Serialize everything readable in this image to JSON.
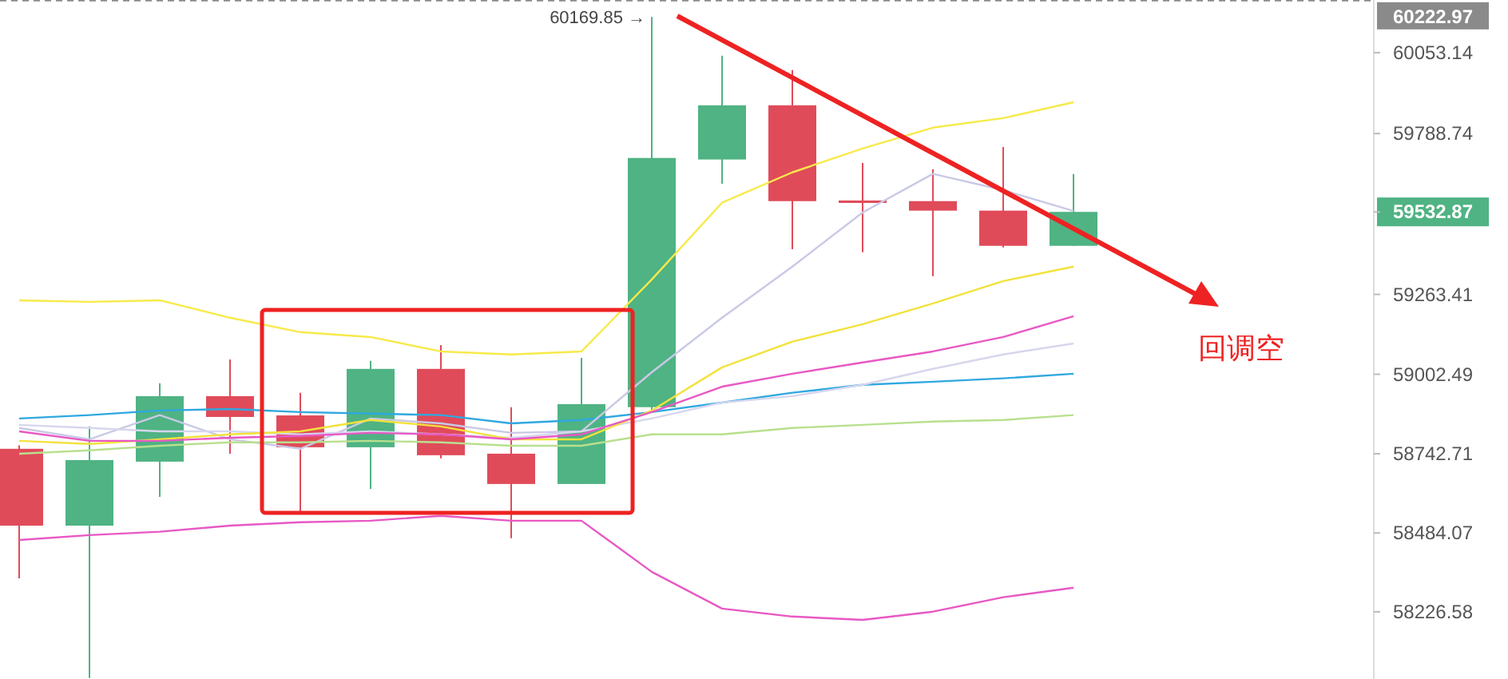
{
  "chart_data": {
    "type": "candlestick",
    "categories": [
      null,
      null,
      null,
      null,
      null,
      null,
      null,
      null,
      null,
      null,
      null,
      null,
      null,
      null,
      null,
      null
    ],
    "ohlc": [
      [
        58759,
        58770,
        58336,
        58508
      ],
      [
        58508,
        58832,
        58010,
        58722
      ],
      [
        58717,
        58973,
        58602,
        58931
      ],
      [
        58931,
        59051,
        58743,
        58863
      ],
      [
        58868,
        58942,
        58555,
        58764
      ],
      [
        58764,
        59046,
        58628,
        59020
      ],
      [
        59020,
        59098,
        58728,
        58738
      ],
      [
        58743,
        58895,
        58467,
        58644
      ],
      [
        58644,
        59056,
        58644,
        58905
      ],
      [
        58895,
        60169.85,
        58879,
        59709
      ],
      [
        59704,
        60043,
        59625,
        59881
      ],
      [
        59881,
        59996,
        59411,
        59568
      ],
      [
        59570,
        59693,
        59401,
        59563
      ],
      [
        59568,
        59672,
        59323,
        59537
      ],
      [
        59537,
        59745,
        59417,
        59422
      ],
      [
        59422,
        59657,
        59422,
        59532.87
      ]
    ],
    "colors": [
      "#e04b5a",
      "#4fb383",
      "#4fb383",
      "#e04b5a",
      "#e04b5a",
      "#4fb383",
      "#e04b5a",
      "#e04b5a",
      "#4fb383",
      "#4fb383",
      "#4fb383",
      "#e04b5a",
      "#e04b5a",
      "#e04b5a",
      "#e04b5a",
      "#4fb383"
    ],
    "series": [
      {
        "type": "line",
        "color": "#f7ea4a",
        "values": [
          59244,
          59239,
          59244,
          59187,
          59140,
          59124,
          59077,
          59067,
          59077,
          59312,
          59563,
          59662,
          59740,
          59808,
          59839,
          59891
        ]
      },
      {
        "type": "line",
        "color": "#e858c4",
        "values": [
          58461,
          58477,
          58488,
          58508,
          58519,
          58524,
          58540,
          58524,
          58524,
          58357,
          58237,
          58211,
          58200,
          58227,
          58274,
          58305
        ]
      },
      {
        "type": "line",
        "color": "#2fa8e0",
        "values": [
          58858,
          58869,
          58884,
          58889,
          58879,
          58874,
          58869,
          58842,
          58853,
          58879,
          58910,
          58942,
          58968,
          58978,
          58989,
          59004
        ]
      },
      {
        "type": "line",
        "color": "#c9c9e6",
        "values": [
          58827,
          58790,
          58869,
          58790,
          58759,
          58858,
          58842,
          58811,
          58816,
          59009,
          59187,
          59354,
          59531,
          59657,
          59604,
          59536
        ]
      },
      {
        "type": "line",
        "color": "#d6d6ee",
        "values": [
          58837,
          58827,
          58816,
          58816,
          58806,
          58816,
          58806,
          58795,
          58816,
          58858,
          58910,
          58931,
          58968,
          59020,
          59067,
          59103
        ]
      },
      {
        "type": "line",
        "color": "#f2e23c",
        "values": [
          58785,
          58775,
          58790,
          58806,
          58816,
          58853,
          58832,
          58790,
          58790,
          58884,
          59025,
          59109,
          59166,
          59234,
          59307,
          59354
        ]
      },
      {
        "type": "line",
        "color": "#e858c4",
        "values": [
          58816,
          58785,
          58785,
          58795,
          58801,
          58811,
          58806,
          58790,
          58806,
          58879,
          58962,
          59004,
          59041,
          59077,
          59124,
          59192
        ]
      },
      {
        "type": "line",
        "color": "#b8e08e",
        "values": [
          58743,
          58754,
          58769,
          58780,
          58780,
          58785,
          58780,
          58769,
          58769,
          58806,
          58806,
          58827,
          58837,
          58848,
          58853,
          58869
        ]
      }
    ],
    "ylim": [
      58007,
      60225
    ],
    "yticks": [
      60053.14,
      59788.74,
      59532.87,
      59263.41,
      59002.49,
      58742.71,
      58484.07,
      58226.58
    ],
    "tick_labels": "y",
    "grid": false,
    "ref_lines": [
      {
        "axis": "y",
        "value": 60222.97,
        "label": "60222.97",
        "color": "#8a8a8a",
        "line_style": "dashed"
      }
    ],
    "annotations": [
      "60169.85 →",
      "回调空"
    ]
  }
}
